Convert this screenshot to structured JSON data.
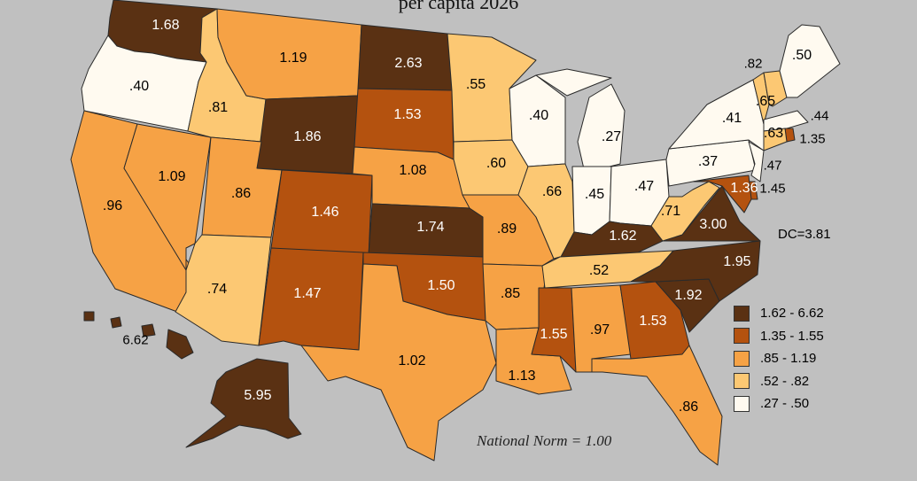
{
  "title": "per capita 2026",
  "legend": [
    {
      "range": "1.62 - 6.62",
      "color": "#5a3113"
    },
    {
      "range": "1.35 - 1.55",
      "color": "#b4520f"
    },
    {
      "range": ".85 - 1.19",
      "color": "#f6a245"
    },
    {
      "range": ".52 - .82",
      "color": "#fcc873"
    },
    {
      "range": ".27 - .50",
      "color": "#fffaf0"
    }
  ],
  "note": "National Norm = 1.00",
  "dc": "DC=3.81",
  "states": [
    {
      "code": "WA",
      "label": "1.68",
      "cls": 0
    },
    {
      "code": "OR",
      "label": ".40",
      "cls": 4
    },
    {
      "code": "CA",
      "label": ".96",
      "cls": 2
    },
    {
      "code": "NV",
      "label": "1.09",
      "cls": 2
    },
    {
      "code": "ID",
      "label": ".81",
      "cls": 3
    },
    {
      "code": "MT",
      "label": "1.19",
      "cls": 2
    },
    {
      "code": "WY",
      "label": "1.86",
      "cls": 0
    },
    {
      "code": "UT",
      "label": ".86",
      "cls": 2
    },
    {
      "code": "AZ",
      "label": ".74",
      "cls": 3
    },
    {
      "code": "CO",
      "label": "1.46",
      "cls": 1
    },
    {
      "code": "NM",
      "label": "1.47",
      "cls": 1
    },
    {
      "code": "ND",
      "label": "2.63",
      "cls": 0
    },
    {
      "code": "SD",
      "label": "1.53",
      "cls": 1
    },
    {
      "code": "NE",
      "label": "1.08",
      "cls": 2
    },
    {
      "code": "KS",
      "label": "1.74",
      "cls": 0
    },
    {
      "code": "OK",
      "label": "1.50",
      "cls": 1
    },
    {
      "code": "TX",
      "label": "1.02",
      "cls": 2
    },
    {
      "code": "MN",
      "label": ".55",
      "cls": 3
    },
    {
      "code": "IA",
      "label": ".60",
      "cls": 3
    },
    {
      "code": "MO",
      "label": ".89",
      "cls": 2
    },
    {
      "code": "AR",
      "label": ".85",
      "cls": 2
    },
    {
      "code": "LA",
      "label": "1.13",
      "cls": 2
    },
    {
      "code": "WI",
      "label": ".40",
      "cls": 4
    },
    {
      "code": "IL",
      "label": ".66",
      "cls": 3
    },
    {
      "code": "MI",
      "label": ".27",
      "cls": 4
    },
    {
      "code": "IN",
      "label": ".45",
      "cls": 4
    },
    {
      "code": "OH",
      "label": ".47",
      "cls": 4
    },
    {
      "code": "KY",
      "label": "1.62",
      "cls": 0
    },
    {
      "code": "TN",
      "label": ".52",
      "cls": 3
    },
    {
      "code": "MS",
      "label": "1.55",
      "cls": 1
    },
    {
      "code": "AL",
      "label": ".97",
      "cls": 2
    },
    {
      "code": "GA",
      "label": "1.53",
      "cls": 1
    },
    {
      "code": "FL",
      "label": ".86",
      "cls": 2
    },
    {
      "code": "SC",
      "label": "1.92",
      "cls": 0
    },
    {
      "code": "NC",
      "label": "1.95",
      "cls": 0
    },
    {
      "code": "VA",
      "label": "3.00",
      "cls": 0
    },
    {
      "code": "WV",
      "label": ".71",
      "cls": 3
    },
    {
      "code": "PA",
      "label": ".37",
      "cls": 4
    },
    {
      "code": "NY",
      "label": ".41",
      "cls": 4
    },
    {
      "code": "VT",
      "label": ".82",
      "cls": 3
    },
    {
      "code": "NH",
      "label": ".65",
      "cls": 3
    },
    {
      "code": "ME",
      "label": ".50",
      "cls": 4
    },
    {
      "code": "MA",
      "label": ".44",
      "cls": 4
    },
    {
      "code": "RI",
      "label": "1.35",
      "cls": 1
    },
    {
      "code": "CT",
      "label": ".63",
      "cls": 3
    },
    {
      "code": "NJ",
      "label": ".47",
      "cls": 4
    },
    {
      "code": "DE",
      "label": "1.45",
      "cls": 1
    },
    {
      "code": "MD",
      "label": "1.36",
      "cls": 1
    },
    {
      "code": "AK",
      "label": "5.95",
      "cls": 0
    },
    {
      "code": "HI",
      "label": "6.62",
      "cls": 0
    }
  ]
}
